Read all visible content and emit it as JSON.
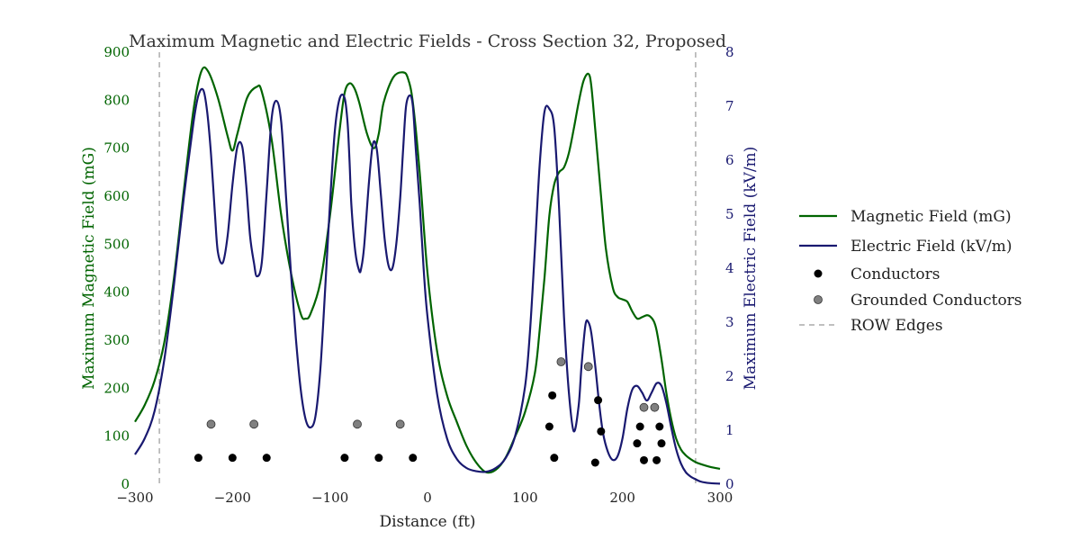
{
  "chart_data": {
    "type": "line",
    "title": "Maximum Magnetic and Electric Fields - Cross Section 32, Proposed",
    "xlabel": "Distance (ft)",
    "ylabel_left": "Maximum Magnetic Field (mG)",
    "ylabel_right": "Maximum Electric Field (kV/m)",
    "xlim": [
      -300,
      300
    ],
    "ylim_left": [
      0,
      900
    ],
    "ylim_right": [
      0,
      8
    ],
    "x_ticks": [
      "−300",
      "−200",
      "−100",
      "0",
      "100",
      "200",
      "300"
    ],
    "y_ticks_left": [
      "0",
      "100",
      "200",
      "300",
      "400",
      "500",
      "600",
      "700",
      "800",
      "900"
    ],
    "y_ticks_right": [
      "0",
      "1",
      "2",
      "3",
      "4",
      "5",
      "6",
      "7",
      "8"
    ],
    "grid": false,
    "legend_position": "right",
    "colors": {
      "magnetic": "#006400",
      "electric": "#191970",
      "conductor": "#000000",
      "grounded": "#808080",
      "row": "#999999",
      "left_axis_text": "#006400",
      "right_axis_text": "#191970"
    },
    "row_edges": [
      -275,
      275
    ],
    "series": [
      {
        "name": "Magnetic Field (mG)",
        "axis": "left",
        "x": [
          -300,
          -290,
          -280,
          -270,
          -260,
          -250,
          -240,
          -232,
          -225,
          -215,
          -205,
          -200,
          -195,
          -185,
          -175,
          -170,
          -160,
          -150,
          -140,
          -130,
          -125,
          -120,
          -110,
          -100,
          -90,
          -85,
          -80,
          -75,
          -70,
          -62,
          -55,
          -50,
          -45,
          -35,
          -25,
          -20,
          -15,
          -8,
          0,
          10,
          20,
          30,
          40,
          50,
          60,
          70,
          80,
          90,
          100,
          110,
          115,
          120,
          125,
          130,
          135,
          140,
          145,
          150,
          155,
          160,
          165,
          168,
          172,
          178,
          183,
          190,
          195,
          200,
          205,
          210,
          215,
          220,
          225,
          228,
          232,
          235,
          240,
          245,
          250,
          255,
          260,
          265,
          270,
          275,
          280,
          290,
          300
        ],
        "y": [
          130,
          165,
          215,
          295,
          430,
          610,
          780,
          860,
          860,
          805,
          725,
          695,
          730,
          805,
          828,
          818,
          720,
          560,
          440,
          355,
          345,
          355,
          420,
          560,
          740,
          815,
          835,
          825,
          795,
          730,
          700,
          730,
          795,
          848,
          858,
          845,
          795,
          650,
          440,
          275,
          185,
          130,
          80,
          45,
          25,
          30,
          55,
          100,
          150,
          230,
          320,
          430,
          560,
          625,
          650,
          660,
          690,
          740,
          795,
          840,
          855,
          830,
          740,
          600,
          490,
          410,
          390,
          385,
          380,
          360,
          345,
          348,
          352,
          350,
          340,
          320,
          260,
          190,
          135,
          95,
          72,
          60,
          52,
          46,
          42,
          36,
          32
        ]
      },
      {
        "name": "Electric Field (kV/m)",
        "axis": "right",
        "x": [
          -300,
          -290,
          -280,
          -270,
          -260,
          -250,
          -240,
          -235,
          -230,
          -226,
          -222,
          -218,
          -215,
          -210,
          -205,
          -200,
          -195,
          -190,
          -186,
          -182,
          -178,
          -175,
          -170,
          -165,
          -160,
          -155,
          -150,
          -145,
          -140,
          -135,
          -130,
          -125,
          -120,
          -115,
          -110,
          -105,
          -100,
          -95,
          -90,
          -85,
          -82,
          -80,
          -78,
          -74,
          -70,
          -68,
          -65,
          -60,
          -56,
          -52,
          -48,
          -44,
          -40,
          -36,
          -32,
          -28,
          -25,
          -22,
          -18,
          -15,
          -12,
          -8,
          -4,
          0,
          10,
          20,
          30,
          40,
          50,
          60,
          70,
          80,
          90,
          100,
          105,
          110,
          115,
          120,
          125,
          130,
          135,
          140,
          145,
          150,
          155,
          158,
          162,
          165,
          168,
          172,
          176,
          180,
          185,
          190,
          195,
          200,
          205,
          210,
          215,
          220,
          225,
          230,
          235,
          240,
          245,
          250,
          255,
          260,
          265,
          270,
          275,
          280,
          285,
          290,
          300
        ],
        "y": [
          0.55,
          0.85,
          1.35,
          2.3,
          3.7,
          5.3,
          6.7,
          7.2,
          7.3,
          6.9,
          6.1,
          5.0,
          4.3,
          4.1,
          4.6,
          5.55,
          6.25,
          6.25,
          5.55,
          4.6,
          4.1,
          3.85,
          4.1,
          5.4,
          6.75,
          7.1,
          6.7,
          5.3,
          3.9,
          2.7,
          1.75,
          1.2,
          1.05,
          1.25,
          2.1,
          3.6,
          5.2,
          6.55,
          7.15,
          7.15,
          6.7,
          6.0,
          5.15,
          4.3,
          3.95,
          4.0,
          4.4,
          5.6,
          6.3,
          6.2,
          5.4,
          4.55,
          4.05,
          4.0,
          4.45,
          5.3,
          6.2,
          7.0,
          7.2,
          7.0,
          6.2,
          5.2,
          4.0,
          3.1,
          1.65,
          0.85,
          0.47,
          0.3,
          0.24,
          0.23,
          0.3,
          0.48,
          0.9,
          1.8,
          2.8,
          4.3,
          5.9,
          6.9,
          6.95,
          6.6,
          5.1,
          3.1,
          1.7,
          0.98,
          1.45,
          2.2,
          2.95,
          3.0,
          2.8,
          2.2,
          1.5,
          0.95,
          0.6,
          0.45,
          0.52,
          0.85,
          1.4,
          1.75,
          1.82,
          1.7,
          1.55,
          1.7,
          1.87,
          1.82,
          1.5,
          1.05,
          0.65,
          0.38,
          0.22,
          0.14,
          0.09,
          0.05,
          0.03,
          0.02,
          0.01
        ]
      }
    ],
    "markers": [
      {
        "name": "Conductors",
        "x": [
          -235,
          -200,
          -165,
          -85,
          -50,
          -15,
          125,
          128,
          130,
          172,
          175,
          178,
          215,
          218,
          222,
          235,
          238,
          240
        ],
        "y": [
          55,
          55,
          55,
          55,
          55,
          55,
          120,
          185,
          55,
          45,
          175,
          110,
          85,
          120,
          50,
          50,
          120,
          85
        ]
      },
      {
        "name": "Grounded Conductors",
        "x": [
          -222,
          -178,
          -72,
          -28,
          137,
          165,
          222,
          233
        ],
        "y": [
          125,
          125,
          125,
          125,
          255,
          245,
          160,
          160
        ]
      }
    ],
    "legend": [
      {
        "label": "Magnetic Field (mG)",
        "kind": "line",
        "color": "#006400"
      },
      {
        "label": "Electric Field (kV/m)",
        "kind": "line",
        "color": "#191970"
      },
      {
        "label": "Conductors",
        "kind": "dot",
        "color": "#000000"
      },
      {
        "label": "Grounded Conductors",
        "kind": "dot",
        "color": "#808080"
      },
      {
        "label": "ROW Edges",
        "kind": "dash",
        "color": "#999999"
      }
    ]
  }
}
